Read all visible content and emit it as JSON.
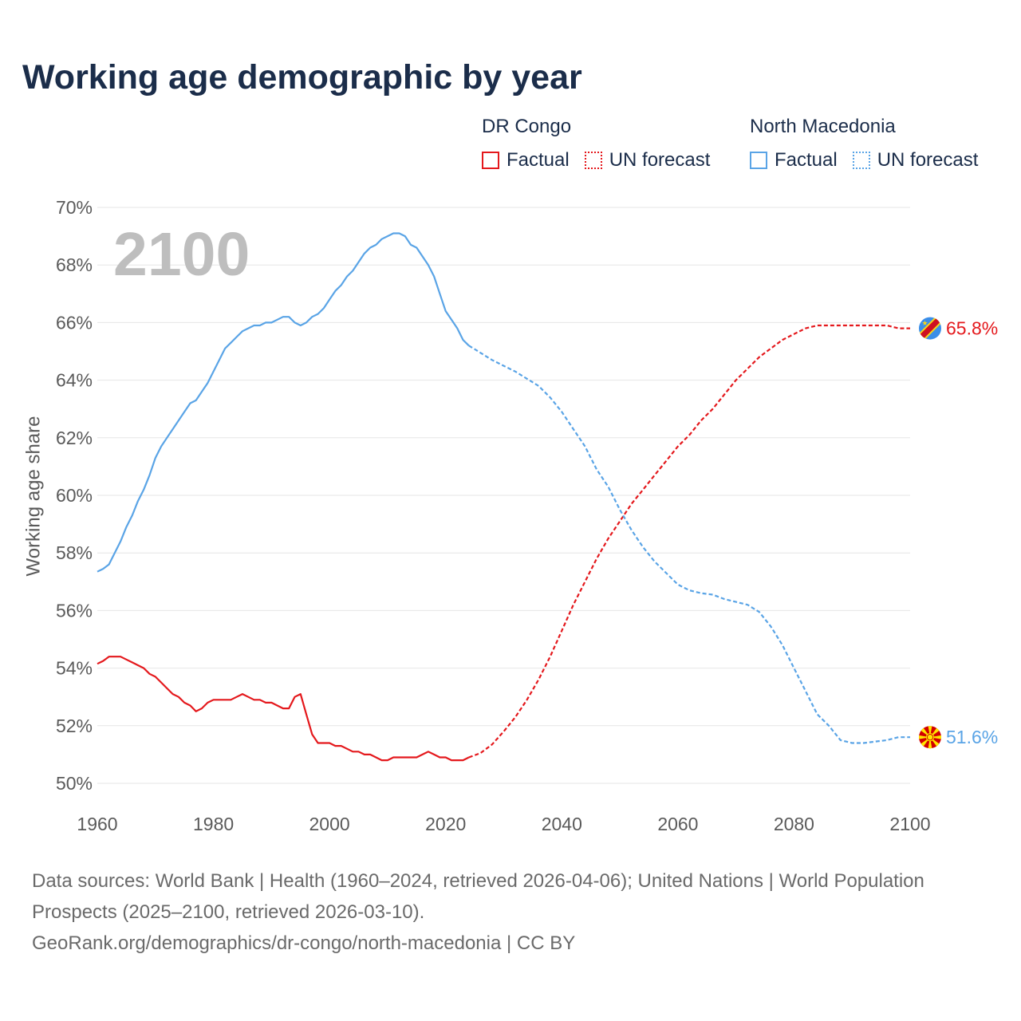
{
  "chart_data": {
    "type": "line",
    "title": "Working age demographic by year",
    "xlabel": "",
    "ylabel": "Working age share",
    "xlim": [
      1960,
      2100
    ],
    "ylim": [
      50,
      70
    ],
    "grid": true,
    "xticks": [
      1960,
      1980,
      2000,
      2020,
      2040,
      2060,
      2080,
      2100
    ],
    "xtick_labels": [
      "1960",
      "1980",
      "2000",
      "2020",
      "2040",
      "2060",
      "2080",
      "2100"
    ],
    "yticks": [
      50,
      52,
      54,
      56,
      58,
      60,
      62,
      64,
      66,
      68,
      70
    ],
    "ytick_labels": [
      "50%",
      "52%",
      "54%",
      "56%",
      "58%",
      "60%",
      "62%",
      "64%",
      "66%",
      "68%",
      "70%"
    ],
    "year_display": "2100",
    "legend": {
      "factual_label": "Factual",
      "forecast_label": "UN forecast"
    },
    "series": [
      {
        "name": "DR Congo",
        "color": "#e4181c",
        "flag_icon": "dr-congo-flag-icon",
        "end_label": "65.8%",
        "factual": {
          "x": [
            1960,
            1961,
            1962,
            1963,
            1964,
            1965,
            1966,
            1967,
            1968,
            1969,
            1970,
            1971,
            1972,
            1973,
            1974,
            1975,
            1976,
            1977,
            1978,
            1979,
            1980,
            1981,
            1982,
            1983,
            1984,
            1985,
            1986,
            1987,
            1988,
            1989,
            1990,
            1991,
            1992,
            1993,
            1994,
            1995,
            1996,
            1997,
            1998,
            1999,
            2000,
            2001,
            2002,
            2003,
            2004,
            2005,
            2006,
            2007,
            2008,
            2009,
            2010,
            2011,
            2012,
            2013,
            2014,
            2015,
            2016,
            2017,
            2018,
            2019,
            2020,
            2021,
            2022,
            2023,
            2024
          ],
          "y": [
            54.15,
            54.25,
            54.4,
            54.4,
            54.4,
            54.3,
            54.2,
            54.1,
            54.0,
            53.8,
            53.7,
            53.5,
            53.3,
            53.1,
            53.0,
            52.8,
            52.7,
            52.5,
            52.6,
            52.8,
            52.9,
            52.9,
            52.9,
            52.9,
            53.0,
            53.1,
            53.0,
            52.9,
            52.9,
            52.8,
            52.8,
            52.7,
            52.6,
            52.6,
            53.0,
            53.1,
            52.4,
            51.7,
            51.4,
            51.4,
            51.4,
            51.3,
            51.3,
            51.2,
            51.1,
            51.1,
            51.0,
            51.0,
            50.9,
            50.8,
            50.8,
            50.9,
            50.9,
            50.9,
            50.9,
            50.9,
            51.0,
            51.1,
            51.0,
            50.9,
            50.9,
            50.8,
            50.8,
            50.8,
            50.9
          ]
        },
        "forecast": {
          "x": [
            2024,
            2026,
            2028,
            2030,
            2032,
            2034,
            2036,
            2038,
            2040,
            2042,
            2044,
            2046,
            2048,
            2050,
            2052,
            2054,
            2056,
            2058,
            2060,
            2062,
            2064,
            2066,
            2068,
            2070,
            2072,
            2074,
            2076,
            2078,
            2080,
            2082,
            2084,
            2086,
            2088,
            2090,
            2092,
            2094,
            2096,
            2098,
            2100
          ],
          "y": [
            50.9,
            51.05,
            51.35,
            51.8,
            52.3,
            52.9,
            53.6,
            54.4,
            55.3,
            56.2,
            57.0,
            57.8,
            58.5,
            59.1,
            59.7,
            60.2,
            60.7,
            61.2,
            61.7,
            62.1,
            62.6,
            63.0,
            63.5,
            64.0,
            64.4,
            64.8,
            65.1,
            65.4,
            65.6,
            65.8,
            65.9,
            65.9,
            65.9,
            65.9,
            65.9,
            65.9,
            65.9,
            65.8,
            65.8
          ]
        }
      },
      {
        "name": "North Macedonia",
        "color": "#5aa4e6",
        "flag_icon": "north-macedonia-flag-icon",
        "end_label": "51.6%",
        "factual": {
          "x": [
            1960,
            1961,
            1962,
            1963,
            1964,
            1965,
            1966,
            1967,
            1968,
            1969,
            1970,
            1971,
            1972,
            1973,
            1974,
            1975,
            1976,
            1977,
            1978,
            1979,
            1980,
            1981,
            1982,
            1983,
            1984,
            1985,
            1986,
            1987,
            1988,
            1989,
            1990,
            1991,
            1992,
            1993,
            1994,
            1995,
            1996,
            1997,
            1998,
            1999,
            2000,
            2001,
            2002,
            2003,
            2004,
            2005,
            2006,
            2007,
            2008,
            2009,
            2010,
            2011,
            2012,
            2013,
            2014,
            2015,
            2016,
            2017,
            2018,
            2019,
            2020,
            2021,
            2022,
            2023,
            2024
          ],
          "y": [
            57.35,
            57.45,
            57.6,
            58.0,
            58.4,
            58.9,
            59.3,
            59.8,
            60.2,
            60.7,
            61.3,
            61.7,
            62.0,
            62.3,
            62.6,
            62.9,
            63.2,
            63.3,
            63.6,
            63.9,
            64.3,
            64.7,
            65.1,
            65.3,
            65.5,
            65.7,
            65.8,
            65.9,
            65.9,
            66.0,
            66.0,
            66.1,
            66.2,
            66.2,
            66.0,
            65.9,
            66.0,
            66.2,
            66.3,
            66.5,
            66.8,
            67.1,
            67.3,
            67.6,
            67.8,
            68.1,
            68.4,
            68.6,
            68.7,
            68.9,
            69.0,
            69.1,
            69.1,
            69.0,
            68.7,
            68.6,
            68.3,
            68.0,
            67.6,
            67.0,
            66.4,
            66.1,
            65.8,
            65.4,
            65.2
          ]
        },
        "forecast": {
          "x": [
            2024,
            2026,
            2028,
            2030,
            2032,
            2034,
            2036,
            2038,
            2040,
            2042,
            2044,
            2046,
            2048,
            2050,
            2052,
            2054,
            2056,
            2058,
            2060,
            2062,
            2064,
            2066,
            2068,
            2070,
            2072,
            2074,
            2076,
            2078,
            2080,
            2082,
            2084,
            2086,
            2088,
            2090,
            2092,
            2094,
            2096,
            2098,
            2100
          ],
          "y": [
            65.2,
            64.95,
            64.7,
            64.5,
            64.3,
            64.05,
            63.8,
            63.4,
            62.9,
            62.3,
            61.7,
            60.9,
            60.3,
            59.5,
            58.8,
            58.2,
            57.7,
            57.3,
            56.9,
            56.7,
            56.6,
            56.55,
            56.4,
            56.3,
            56.2,
            55.95,
            55.45,
            54.8,
            54.0,
            53.2,
            52.4,
            52.0,
            51.5,
            51.4,
            51.4,
            51.45,
            51.5,
            51.6,
            51.6
          ]
        }
      }
    ]
  },
  "footer": {
    "sources": "Data sources: World Bank | Health (1960–2024, retrieved 2026-04-06); United Nations | World Population Prospects (2025–2100, retrieved 2026-03-10).",
    "credit": "GeoRank.org/demographics/dr-congo/north-macedonia | CC BY"
  }
}
